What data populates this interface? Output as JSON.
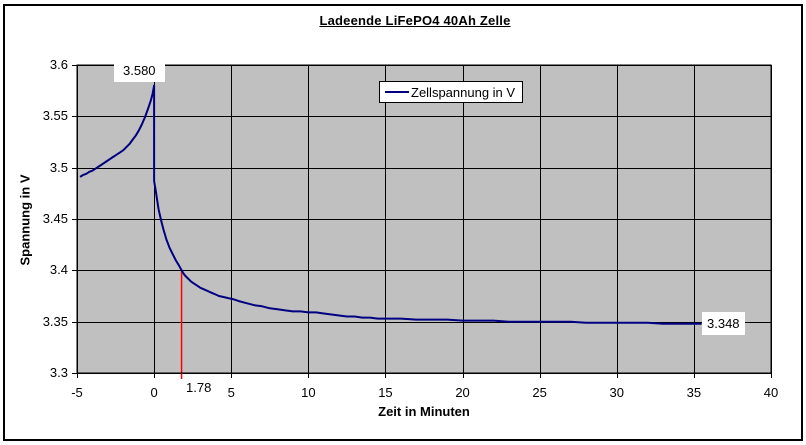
{
  "colors": {
    "series_line": "#000080",
    "marker_line": "#FF0000",
    "plot_background": "#C0C0C0",
    "grid_line": "#000000",
    "text": "#000000",
    "chart_frame": "#000000"
  },
  "chart_data": {
    "type": "line",
    "title": "Ladeende LiFePO4 40Ah Zelle",
    "xlabel": "Zeit in Minuten",
    "ylabel": "Spannung in V",
    "xlim": [
      -5,
      40
    ],
    "ylim": [
      3.3,
      3.6
    ],
    "xticks": [
      -5,
      0,
      5,
      10,
      15,
      20,
      25,
      30,
      35,
      40
    ],
    "xtick_labels": [
      "-5",
      "0",
      "5",
      "10",
      "15",
      "20",
      "25",
      "30",
      "35",
      "40"
    ],
    "yticks": [
      3.3,
      3.35,
      3.4,
      3.45,
      3.5,
      3.55,
      3.6
    ],
    "ytick_labels": [
      "3.3",
      "3.35",
      "3.4",
      "3.45",
      "3.5",
      "3.55",
      "3.6"
    ],
    "grid": true,
    "plot_bg": "#C0C0C0",
    "legend": {
      "label": "Zellspannung in V",
      "position": "top-center-inside"
    },
    "series": [
      {
        "name": "Zellspannung in V",
        "color": "#000080",
        "points": [
          [
            -4.8,
            3.491
          ],
          [
            -4.6,
            3.493
          ],
          [
            -4.4,
            3.494
          ],
          [
            -4.2,
            3.496
          ],
          [
            -4.0,
            3.497
          ],
          [
            -3.8,
            3.499
          ],
          [
            -3.6,
            3.501
          ],
          [
            -3.4,
            3.503
          ],
          [
            -3.2,
            3.505
          ],
          [
            -3.0,
            3.507
          ],
          [
            -2.8,
            3.509
          ],
          [
            -2.6,
            3.511
          ],
          [
            -2.4,
            3.513
          ],
          [
            -2.2,
            3.515
          ],
          [
            -2.0,
            3.517
          ],
          [
            -1.8,
            3.52
          ],
          [
            -1.6,
            3.523
          ],
          [
            -1.4,
            3.527
          ],
          [
            -1.2,
            3.531
          ],
          [
            -1.0,
            3.536
          ],
          [
            -0.8,
            3.542
          ],
          [
            -0.6,
            3.549
          ],
          [
            -0.4,
            3.557
          ],
          [
            -0.2,
            3.566
          ],
          [
            -0.1,
            3.572
          ],
          [
            0.0,
            3.58
          ],
          [
            0.0,
            3.487
          ],
          [
            0.1,
            3.478
          ],
          [
            0.2,
            3.468
          ],
          [
            0.3,
            3.459
          ],
          [
            0.4,
            3.452
          ],
          [
            0.5,
            3.446
          ],
          [
            0.6,
            3.44
          ],
          [
            0.7,
            3.435
          ],
          [
            0.8,
            3.43
          ],
          [
            0.9,
            3.426
          ],
          [
            1.0,
            3.422
          ],
          [
            1.2,
            3.416
          ],
          [
            1.4,
            3.41
          ],
          [
            1.6,
            3.405
          ],
          [
            1.78,
            3.4
          ],
          [
            1.9,
            3.397
          ],
          [
            2.0,
            3.395
          ],
          [
            2.2,
            3.392
          ],
          [
            2.4,
            3.389
          ],
          [
            2.6,
            3.387
          ],
          [
            2.8,
            3.385
          ],
          [
            3.0,
            3.383
          ],
          [
            3.3,
            3.381
          ],
          [
            3.6,
            3.379
          ],
          [
            3.9,
            3.377
          ],
          [
            4.2,
            3.375
          ],
          [
            4.5,
            3.374
          ],
          [
            4.8,
            3.373
          ],
          [
            5.1,
            3.372
          ],
          [
            5.5,
            3.37
          ],
          [
            6.0,
            3.368
          ],
          [
            6.5,
            3.366
          ],
          [
            7.0,
            3.365
          ],
          [
            7.5,
            3.363
          ],
          [
            8.0,
            3.362
          ],
          [
            8.5,
            3.361
          ],
          [
            9.0,
            3.36
          ],
          [
            9.5,
            3.36
          ],
          [
            10.0,
            3.359
          ],
          [
            10.5,
            3.359
          ],
          [
            11.0,
            3.358
          ],
          [
            11.5,
            3.357
          ],
          [
            12.0,
            3.356
          ],
          [
            12.5,
            3.355
          ],
          [
            13.0,
            3.355
          ],
          [
            13.5,
            3.354
          ],
          [
            14.0,
            3.354
          ],
          [
            14.5,
            3.353
          ],
          [
            15.0,
            3.353
          ],
          [
            16.0,
            3.353
          ],
          [
            17.0,
            3.352
          ],
          [
            18.0,
            3.352
          ],
          [
            19.0,
            3.352
          ],
          [
            20.0,
            3.351
          ],
          [
            21.0,
            3.351
          ],
          [
            22.0,
            3.351
          ],
          [
            23.0,
            3.35
          ],
          [
            24.0,
            3.35
          ],
          [
            25.0,
            3.35
          ],
          [
            26.0,
            3.35
          ],
          [
            27.0,
            3.35
          ],
          [
            28.0,
            3.349
          ],
          [
            29.0,
            3.349
          ],
          [
            30.0,
            3.349
          ],
          [
            31.0,
            3.349
          ],
          [
            32.0,
            3.349
          ],
          [
            33.0,
            3.348
          ],
          [
            34.0,
            3.348
          ],
          [
            35.0,
            3.348
          ],
          [
            35.5,
            3.348
          ]
        ]
      }
    ],
    "annotations": [
      {
        "id": "peak",
        "text": "3.580",
        "x": 0,
        "y": 3.58
      },
      {
        "id": "marker",
        "text": "1.78",
        "x": 1.78,
        "y_top": 3.4,
        "line_color": "#FF0000"
      },
      {
        "id": "end",
        "text": "3.348",
        "x": 35.5,
        "y": 3.348
      }
    ]
  }
}
